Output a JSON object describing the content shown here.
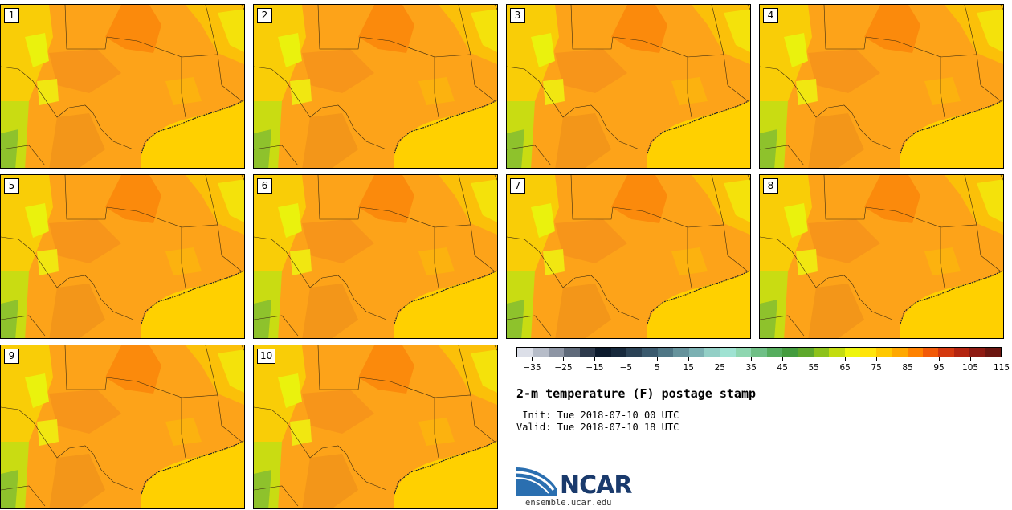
{
  "stamps": [
    {
      "label": "1"
    },
    {
      "label": "2"
    },
    {
      "label": "3"
    },
    {
      "label": "4"
    },
    {
      "label": "5"
    },
    {
      "label": "6"
    },
    {
      "label": "7"
    },
    {
      "label": "8"
    },
    {
      "label": "9"
    },
    {
      "label": "10"
    }
  ],
  "colorbar": {
    "colors": [
      "#dcdfe8",
      "#b6bcc8",
      "#8d95a4",
      "#5f6a7a",
      "#2e3a4c",
      "#0d1b2d",
      "#17293c",
      "#2b4256",
      "#3b5a6e",
      "#4f7685",
      "#66939c",
      "#7bb0b2",
      "#93cfc6",
      "#9fe2d2",
      "#8ed6b0",
      "#6fbf86",
      "#56ad5e",
      "#449c3e",
      "#5ea82c",
      "#8dc21a",
      "#c3dc10",
      "#eef50c",
      "#ffe40a",
      "#ffc800",
      "#ffa800",
      "#ff8200",
      "#f25a08",
      "#d4380e",
      "#b42410",
      "#8e1a12",
      "#6b1510"
    ],
    "tick_labels": [
      "−35",
      "−25",
      "−15",
      "−5",
      "5",
      "15",
      "25",
      "35",
      "45",
      "55",
      "65",
      "75",
      "85",
      "95",
      "105",
      "115"
    ],
    "min": -40,
    "max": 120
  },
  "title": "2-m temperature (F) postage stamp",
  "init": " Init: Tue 2018-07-10 00 UTC",
  "valid": "Valid: Tue 2018-07-10 18 UTC",
  "logo": {
    "text": "NCAR",
    "url": "ensemble.ucar.edu"
  }
}
